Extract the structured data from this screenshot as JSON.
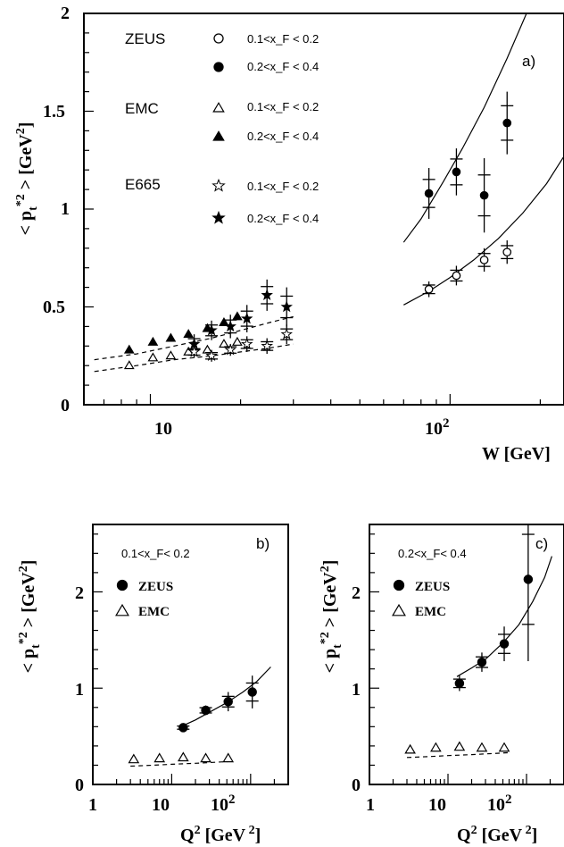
{
  "chart_data": [
    {
      "type": "scatter",
      "panel_label": "a)",
      "xlabel": "W [GeV]",
      "ylabel": "<p_t^*2> [GeV^2]",
      "x_scale": "log",
      "xlim": [
        6,
        240
      ],
      "ylim": [
        0,
        2
      ],
      "yticks": [
        "0",
        "0.5",
        "1",
        "1.5",
        "2"
      ],
      "xticks": [
        "10",
        "10^2"
      ],
      "legend": [
        {
          "group": "ZEUS",
          "items": [
            {
              "marker": "open-circle",
              "label": "0.1<x_F < 0.2"
            },
            {
              "marker": "filled-circle",
              "label": "0.2<x_F < 0.4"
            }
          ]
        },
        {
          "group": "EMC",
          "items": [
            {
              "marker": "open-triangle",
              "label": "0.1<x_F < 0.2"
            },
            {
              "marker": "filled-triangle",
              "label": "0.2<x_F < 0.4"
            }
          ]
        },
        {
          "group": "E665",
          "items": [
            {
              "marker": "open-star",
              "label": "0.1<x_F < 0.2"
            },
            {
              "marker": "filled-star",
              "label": "0.2<x_F < 0.4"
            }
          ]
        }
      ],
      "series": [
        {
          "marker": "filled-circle",
          "x": [
            85,
            105,
            130,
            155
          ],
          "y": [
            1.08,
            1.19,
            1.07,
            1.44
          ],
          "err": [
            0.13,
            0.12,
            0.19,
            0.16
          ]
        },
        {
          "marker": "open-circle",
          "x": [
            85,
            105,
            130,
            155
          ],
          "y": [
            0.59,
            0.66,
            0.74,
            0.78
          ],
          "err": [
            0.04,
            0.05,
            0.06,
            0.06
          ]
        },
        {
          "marker": "filled-triangle",
          "x": [
            8.5,
            10.2,
            11.7,
            13.4,
            15.5,
            17.6,
            19.5
          ],
          "y": [
            0.28,
            0.32,
            0.34,
            0.36,
            0.39,
            0.42,
            0.45
          ],
          "err": [
            0,
            0,
            0,
            0,
            0,
            0,
            0
          ]
        },
        {
          "marker": "open-triangle",
          "x": [
            8.5,
            10.2,
            11.7,
            13.4,
            15.5,
            17.6,
            19.5
          ],
          "y": [
            0.2,
            0.24,
            0.25,
            0.27,
            0.28,
            0.31,
            0.32
          ],
          "err": [
            0,
            0,
            0,
            0,
            0,
            0,
            0
          ]
        },
        {
          "marker": "filled-star",
          "x": [
            14,
            16,
            18.5,
            21,
            24.5,
            28.5
          ],
          "y": [
            0.31,
            0.38,
            0.4,
            0.44,
            0.56,
            0.5
          ],
          "err": [
            0.05,
            0.05,
            0.06,
            0.07,
            0.08,
            0.1
          ]
        },
        {
          "marker": "open-star",
          "x": [
            14,
            16,
            18.5,
            21,
            24.5,
            28.5
          ],
          "y": [
            0.27,
            0.25,
            0.28,
            0.31,
            0.3,
            0.36
          ],
          "err": [
            0.03,
            0.03,
            0.03,
            0.04,
            0.04,
            0.05
          ]
        }
      ],
      "curves": [
        {
          "style": "solid",
          "x": [
            70,
            80,
            95,
            110,
            130,
            155,
            180,
            205
          ],
          "y": [
            0.83,
            0.95,
            1.14,
            1.31,
            1.52,
            1.77,
            2.0,
            2.22
          ]
        },
        {
          "style": "solid",
          "x": [
            70,
            85,
            100,
            120,
            145,
            175,
            210,
            240
          ],
          "y": [
            0.51,
            0.58,
            0.65,
            0.74,
            0.85,
            0.98,
            1.13,
            1.27
          ]
        },
        {
          "style": "dashed",
          "x": [
            6.5,
            9,
            12,
            16,
            20,
            25,
            30
          ],
          "y": [
            0.23,
            0.26,
            0.3,
            0.34,
            0.38,
            0.42,
            0.45
          ]
        },
        {
          "style": "dashed",
          "x": [
            6.5,
            9,
            12,
            16,
            20,
            25,
            30
          ],
          "y": [
            0.17,
            0.2,
            0.23,
            0.25,
            0.27,
            0.29,
            0.31
          ]
        }
      ]
    },
    {
      "type": "scatter",
      "panel_label": "b)",
      "title_note": "0.1<x_F< 0.2",
      "xlabel": "Q^2 [GeV^2]",
      "ylabel": "<p_t^*2> [GeV^2]",
      "x_scale": "log",
      "xlim": [
        1,
        300
      ],
      "ylim": [
        0,
        2.7
      ],
      "yticks": [
        "0",
        "1",
        "2"
      ],
      "xticks": [
        "1",
        "10",
        "10^2"
      ],
      "legend": [
        {
          "marker": "filled-circle",
          "label": "ZEUS"
        },
        {
          "marker": "open-triangle",
          "label": "EMC"
        }
      ],
      "series": [
        {
          "marker": "filled-circle",
          "x": [
            14,
            27,
            52,
            105
          ],
          "y": [
            0.59,
            0.77,
            0.86,
            0.96
          ],
          "err": [
            0.03,
            0.05,
            0.1,
            0.17
          ]
        },
        {
          "marker": "open-triangle",
          "x": [
            3.3,
            7,
            14,
            27,
            52
          ],
          "y": [
            0.26,
            0.27,
            0.28,
            0.27,
            0.27
          ],
          "err": [
            0,
            0,
            0,
            0,
            0
          ]
        }
      ],
      "curves": [
        {
          "style": "solid",
          "x": [
            13,
            20,
            30,
            50,
            80,
            120,
            180
          ],
          "y": [
            0.6,
            0.67,
            0.75,
            0.85,
            0.96,
            1.07,
            1.22
          ]
        },
        {
          "style": "dashed",
          "x": [
            3,
            6,
            10,
            20,
            35,
            60
          ],
          "y": [
            0.19,
            0.2,
            0.21,
            0.22,
            0.23,
            0.24
          ]
        }
      ]
    },
    {
      "type": "scatter",
      "panel_label": "c)",
      "title_note": "0.2<x_F< 0.4",
      "xlabel": "Q^2 [GeV^2]",
      "ylabel": "<p_t^*2> [GeV^2]",
      "x_scale": "log",
      "xlim": [
        1,
        300
      ],
      "ylim": [
        0,
        2.7
      ],
      "yticks": [
        "0",
        "1",
        "2"
      ],
      "xticks": [
        "1",
        "10",
        "10^2"
      ],
      "legend": [
        {
          "marker": "filled-circle",
          "label": "ZEUS"
        },
        {
          "marker": "open-triangle",
          "label": "EMC"
        }
      ],
      "series": [
        {
          "marker": "filled-circle",
          "x": [
            14,
            27,
            52,
            105
          ],
          "y": [
            1.05,
            1.27,
            1.46,
            2.13
          ],
          "err": [
            0.08,
            0.1,
            0.18,
            0.85
          ]
        },
        {
          "marker": "open-triangle",
          "x": [
            3.3,
            7,
            14,
            27,
            52
          ],
          "y": [
            0.36,
            0.38,
            0.39,
            0.38,
            0.38
          ],
          "err": [
            0,
            0,
            0,
            0,
            0
          ]
        }
      ],
      "curves": [
        {
          "style": "solid",
          "x": [
            13,
            20,
            30,
            50,
            80,
            120,
            170,
            210
          ],
          "y": [
            1.12,
            1.21,
            1.3,
            1.47,
            1.66,
            1.9,
            2.15,
            2.37
          ]
        },
        {
          "style": "dashed",
          "x": [
            3,
            6,
            10,
            20,
            35,
            60
          ],
          "y": [
            0.28,
            0.29,
            0.3,
            0.31,
            0.32,
            0.33
          ]
        }
      ]
    }
  ]
}
